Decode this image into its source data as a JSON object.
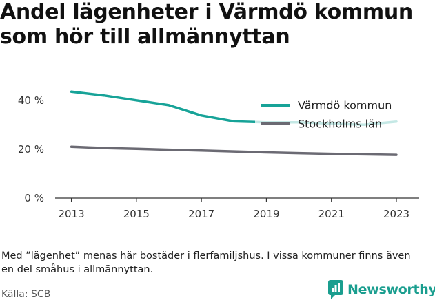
{
  "title_lines": [
    "Andel lägenheter i Värmdö kommun",
    "som hör till allmännyttan"
  ],
  "footnote": "Med ”lägenhet” menas här bostäder i flerfamiljshus. I vissa kommuner finns även en del småhus i allmännyttan.",
  "source": "Källa: SCB",
  "brand": {
    "name": "Newsworthy",
    "icon": "newsworthy-logo-icon",
    "color": "#1a9e8f"
  },
  "chart_data": {
    "type": "line",
    "title": "Andel lägenheter i Värmdö kommun som hör till allmännyttan",
    "xlabel": "",
    "ylabel": "",
    "x": [
      2013,
      2014,
      2015,
      2016,
      2017,
      2018,
      2019,
      2020,
      2021,
      2022,
      2023
    ],
    "x_ticks": [
      "2013",
      "2015",
      "2017",
      "2019",
      "2021",
      "2023"
    ],
    "y_ticks": [
      "0 %",
      "20 %",
      "40 %"
    ],
    "ylim": [
      0,
      45
    ],
    "grid": false,
    "legend_position": "top-right",
    "series": [
      {
        "name": "Värmdö kommun",
        "color": "#17a398",
        "values": [
          43.5,
          42,
          40,
          38,
          33.8,
          31.4,
          31,
          31,
          30.5,
          30,
          31.3
        ]
      },
      {
        "name": "Stockholms län",
        "color": "#6b6a73",
        "values": [
          21,
          20.5,
          20.2,
          19.8,
          19.5,
          19.1,
          18.7,
          18.4,
          18.1,
          17.9,
          17.7
        ]
      }
    ]
  }
}
